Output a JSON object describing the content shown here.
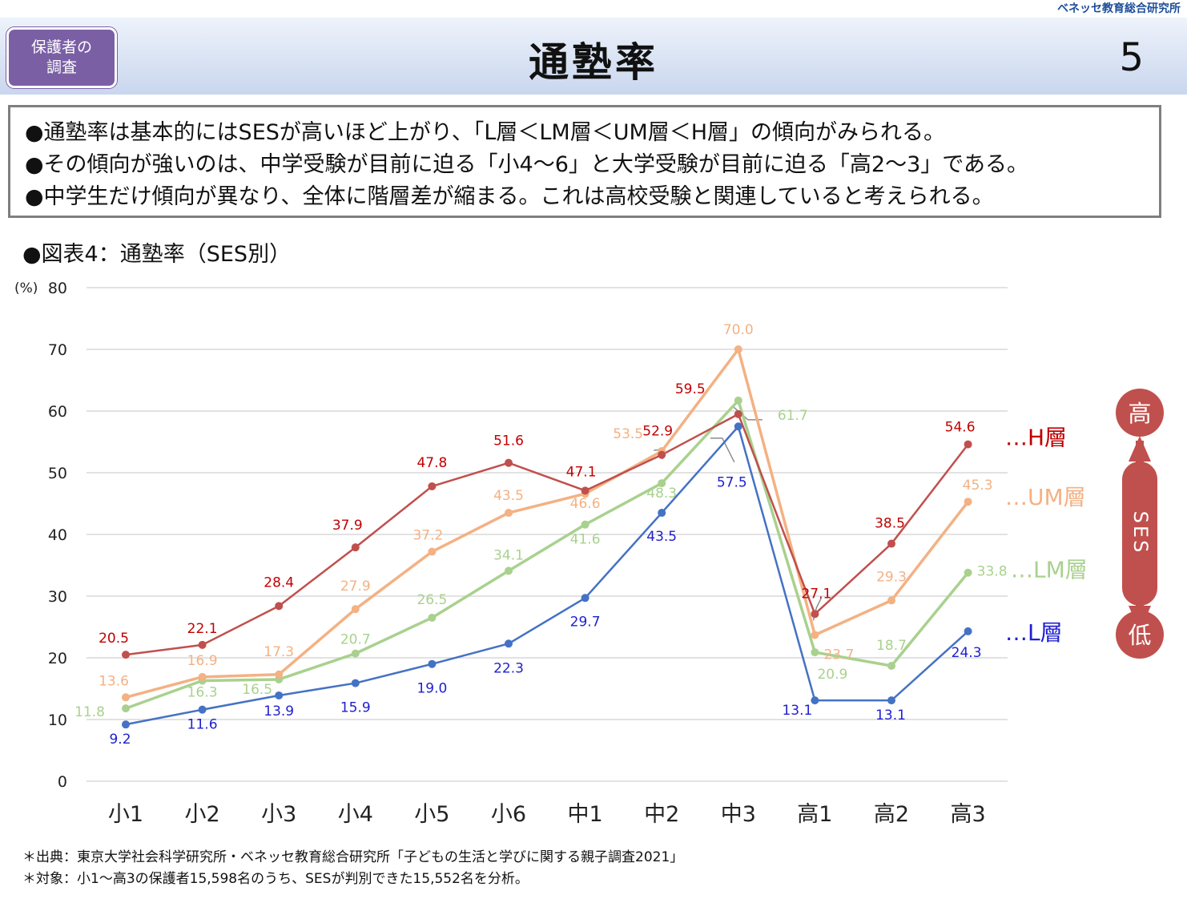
{
  "organization": "ベネッセ教育総合研究所",
  "badge": {
    "line1": "保護者の",
    "line2": "調査"
  },
  "title": "通塾率",
  "page_number": "5",
  "summary": [
    "●通塾率は基本的にはSESが高いほど上がり、「L層＜LM層＜UM層＜H層」の傾向がみられる。",
    "●その傾向が強いのは、中学受験が目前に迫る「小4～6」と大学受験が目前に迫る「高2～3」である。",
    "●中学生だけ傾向が異なり、全体に階層差が縮まる。これは高校受験と関連していると考えられる。"
  ],
  "figure_title": "●図表4：通塾率（SES別）",
  "ses_axis": {
    "top_label": "高",
    "bottom_label": "低",
    "text": "SES"
  },
  "sources": [
    "＊出典：東京大学社会科学研究所・ベネッセ教育総合研究所「子どもの生活と学びに関する親子調査2021」",
    "＊対象：小1～高3の保護者15,598名のうち、SESが判別できた15,552名を分析。"
  ],
  "chart_data": {
    "type": "line",
    "ylabel": "(%)",
    "ylim": [
      0,
      80
    ],
    "yticks": [
      0,
      10,
      20,
      30,
      40,
      50,
      60,
      70,
      80
    ],
    "categories": [
      "小1",
      "小2",
      "小3",
      "小4",
      "小5",
      "小6",
      "中1",
      "中2",
      "中3",
      "高1",
      "高2",
      "高3"
    ],
    "grid": true,
    "series": [
      {
        "name": "…H層",
        "color": "#c0504d",
        "label_color": "#c00000",
        "values": [
          20.5,
          22.1,
          28.4,
          37.9,
          47.8,
          51.6,
          47.1,
          52.9,
          59.5,
          27.1,
          38.5,
          54.6
        ]
      },
      {
        "name": "…UM層",
        "color": "#f4b183",
        "label_color": "#f4b183",
        "values": [
          13.6,
          16.9,
          17.3,
          27.9,
          37.2,
          43.5,
          46.6,
          53.5,
          70.0,
          23.7,
          29.3,
          45.3
        ]
      },
      {
        "name": "…LM層",
        "color": "#a9d18e",
        "label_color": "#a9d18e",
        "values": [
          11.8,
          16.3,
          16.5,
          20.7,
          26.5,
          34.1,
          41.6,
          48.3,
          61.7,
          20.9,
          18.7,
          33.8
        ]
      },
      {
        "name": "…L層",
        "color": "#4472c4",
        "label_color": "#2020d0",
        "values": [
          9.2,
          11.6,
          13.9,
          15.9,
          19.0,
          22.3,
          29.7,
          43.5,
          57.5,
          13.1,
          13.1,
          24.3
        ]
      }
    ]
  }
}
